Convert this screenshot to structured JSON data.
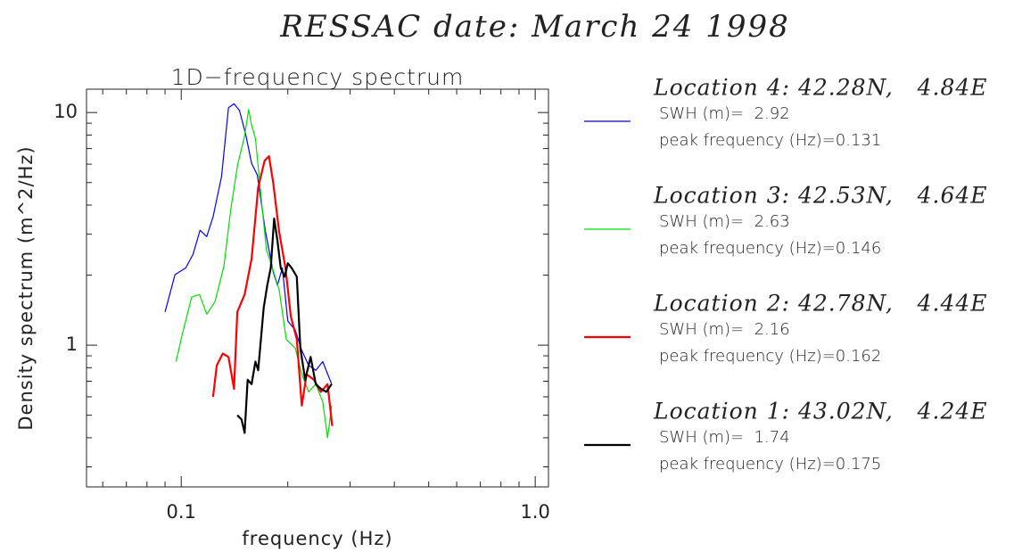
{
  "chart_data": {
    "type": "line",
    "title": "RESSAC date: March 24 1998",
    "subtitle": "1D−frequency spectrum",
    "x_label": "frequency (Hz)",
    "y_label": "Density spectrum (m^2/Hz)",
    "xscale": "log",
    "yscale": "log",
    "xlim": [
      0.054,
      1.09
    ],
    "ylim": [
      0.246,
      12.6
    ],
    "xticks": [
      0.1,
      {
        "value": 1,
        "label": "1.0"
      }
    ],
    "xminorticks": [
      0.06,
      0.07,
      0.08,
      0.09,
      0.2,
      0.3,
      0.4,
      0.5,
      0.6,
      0.7,
      0.8,
      0.9
    ],
    "yticks": [
      1,
      10
    ],
    "yminorticks": [
      0.3,
      0.4,
      0.5,
      0.6,
      0.7,
      0.8,
      0.9,
      2,
      3,
      4,
      5,
      6,
      7,
      8,
      9
    ],
    "legend": "right",
    "series": [
      {
        "name": "Location 4: 42.28N,   4.84E",
        "color": "#0000ff",
        "width": 1.2,
        "info": [
          "SWH (m)=  2.92",
          "peak frequency (Hz)=0.131"
        ],
        "x": [
          0.09,
          0.096,
          0.103,
          0.108,
          0.113,
          0.118,
          0.123,
          0.13,
          0.136,
          0.141,
          0.146,
          0.152,
          0.158,
          0.164,
          0.173,
          0.182,
          0.187,
          0.193,
          0.2,
          0.21,
          0.219,
          0.229,
          0.24,
          0.251,
          0.266
        ],
        "values": [
          1.39,
          2.01,
          2.15,
          2.46,
          3.12,
          2.93,
          3.56,
          5.3,
          10.5,
          10.9,
          10.2,
          8.09,
          6.05,
          5.39,
          3.07,
          2.06,
          1.81,
          2.15,
          1.27,
          1.16,
          0.95,
          0.82,
          0.78,
          0.85,
          0.68
        ]
      },
      {
        "name": "Location 3: 42.53N,   4.64E",
        "color": "#00e000",
        "width": 1.2,
        "info": [
          "SWH (m)=  2.63",
          "peak frequency (Hz)=0.146"
        ],
        "x": [
          0.0967,
          0.1006,
          0.107,
          0.1126,
          0.118,
          0.1246,
          0.132,
          0.138,
          0.1443,
          0.151,
          0.155,
          0.158,
          0.162,
          0.169,
          0.174,
          0.181,
          0.189,
          0.198,
          0.21,
          0.219,
          0.229,
          0.24,
          0.251,
          0.259,
          0.266
        ],
        "values": [
          0.85,
          1.11,
          1.61,
          1.65,
          1.36,
          1.54,
          2.19,
          3.82,
          5.94,
          7.95,
          10.3,
          8.84,
          7.74,
          4.0,
          2.57,
          2.15,
          1.73,
          1.06,
          0.97,
          0.75,
          0.63,
          0.68,
          0.57,
          0.4,
          0.55
        ]
      },
      {
        "name": "Location 2: 42.78N,   4.44E",
        "color": "#ff0000",
        "width": 2.2,
        "info": [
          "SWH (m)=  2.16",
          "peak frequency (Hz)=0.162"
        ],
        "x": [
          0.123,
          0.126,
          0.131,
          0.136,
          0.141,
          0.144,
          0.151,
          0.158,
          0.165,
          0.172,
          0.177,
          0.182,
          0.189,
          0.197,
          0.204,
          0.212,
          0.219,
          0.226,
          0.237,
          0.248,
          0.259,
          0.267
        ],
        "values": [
          0.6,
          0.82,
          0.92,
          0.89,
          0.65,
          1.39,
          1.65,
          2.35,
          4.77,
          6.21,
          6.49,
          4.98,
          3.07,
          2.15,
          1.33,
          1.06,
          0.55,
          0.75,
          0.71,
          0.63,
          0.68,
          0.45
        ]
      },
      {
        "name": "Location 1: 43.02N,   4.24E",
        "color": "#000000",
        "width": 2.2,
        "info": [
          "SWH (m)=  1.74",
          "peak frequency (Hz)=0.175"
        ],
        "x": [
          0.144,
          0.148,
          0.151,
          0.154,
          0.158,
          0.162,
          0.165,
          0.171,
          0.175,
          0.179,
          0.183,
          0.187,
          0.191,
          0.196,
          0.2,
          0.205,
          0.212,
          0.217,
          0.224,
          0.232,
          0.24,
          0.248,
          0.257,
          0.266
        ],
        "values": [
          0.5,
          0.48,
          0.42,
          0.71,
          0.68,
          0.85,
          0.78,
          1.45,
          1.81,
          2.15,
          3.5,
          2.81,
          2.15,
          1.97,
          2.25,
          2.15,
          1.97,
          0.97,
          0.71,
          0.89,
          0.68,
          0.65,
          0.63,
          0.68
        ]
      }
    ]
  }
}
